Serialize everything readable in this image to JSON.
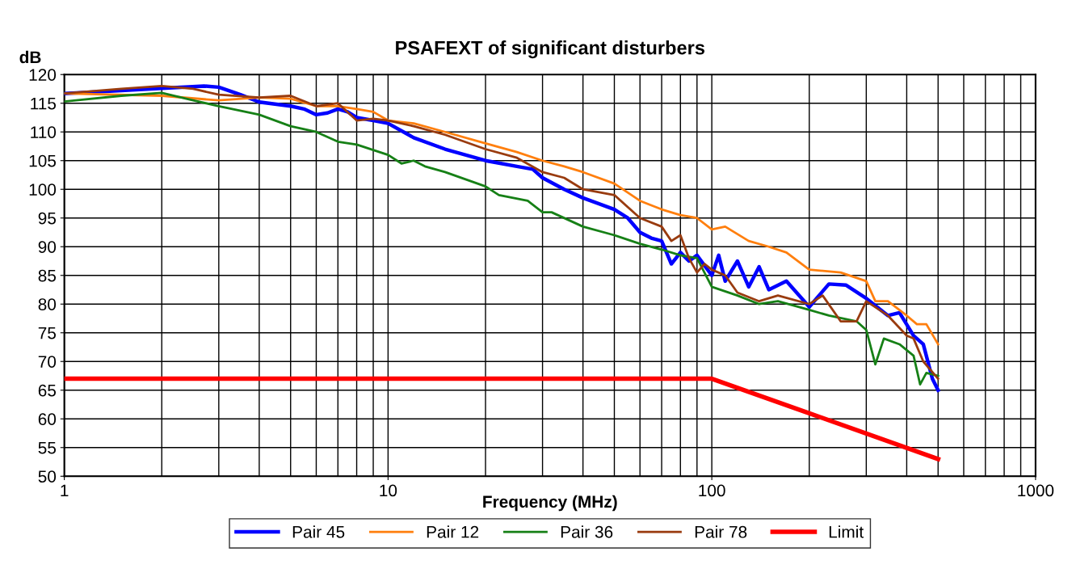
{
  "chart_data": {
    "type": "line",
    "title": "PSAFEXT of significant disturbers",
    "xlabel": "Frequency (MHz)",
    "ylabel": "dB",
    "log": "x",
    "grid": true,
    "legend": "bottom",
    "line_style": "solid",
    "marker": "none",
    "xlim": [
      1,
      1000
    ],
    "xticks": [
      1,
      10,
      100,
      1000
    ],
    "ylim": [
      50,
      120
    ],
    "yticks": [
      50,
      55,
      60,
      65,
      70,
      75,
      80,
      85,
      90,
      95,
      100,
      105,
      110,
      115,
      120
    ],
    "series": [
      {
        "name": "Pair 45",
        "color": "#0000ff",
        "x": [
          1,
          1.5,
          2,
          2.7,
          3,
          3.5,
          4,
          5,
          5.5,
          6,
          6.5,
          7,
          7.5,
          8,
          9,
          10,
          12,
          15,
          20,
          25,
          28,
          30,
          35,
          40,
          50,
          55,
          60,
          65,
          70,
          75,
          80,
          85,
          90,
          100,
          105,
          110,
          120,
          130,
          140,
          150,
          170,
          200,
          230,
          260,
          300,
          350,
          380,
          420,
          450,
          480,
          500
        ],
        "values": [
          116.7,
          117.2,
          117.6,
          118,
          117.8,
          116.5,
          115.2,
          114.5,
          114,
          113,
          113.3,
          114,
          113.5,
          112.5,
          112,
          111.5,
          109,
          107,
          105,
          104,
          103.5,
          102,
          100,
          98.5,
          96.5,
          95,
          92.5,
          91.5,
          91,
          87,
          89,
          87.5,
          88.5,
          85,
          88.5,
          84,
          87.5,
          83,
          86.5,
          82.5,
          84,
          79.5,
          83.5,
          83.3,
          81,
          78,
          78.5,
          74.5,
          73,
          67,
          65
        ]
      },
      {
        "name": "Pair 12",
        "color": "#ff7f0e",
        "x": [
          1,
          2,
          3,
          4,
          5,
          6,
          7,
          8,
          9,
          10,
          12,
          15,
          20,
          25,
          30,
          35,
          40,
          50,
          60,
          70,
          80,
          90,
          100,
          110,
          130,
          150,
          170,
          200,
          250,
          300,
          320,
          350,
          400,
          430,
          460,
          500
        ],
        "values": [
          116.7,
          116.3,
          115.5,
          116,
          115.8,
          114.5,
          114.5,
          114,
          113.5,
          112,
          111.5,
          110,
          108,
          106.5,
          105,
          104,
          103,
          101,
          98,
          96.5,
          95.5,
          95,
          93,
          93.5,
          91,
          90,
          89,
          86,
          85.5,
          84,
          80.5,
          80.5,
          78,
          76.5,
          76.5,
          73
        ]
      },
      {
        "name": "Pair 36",
        "color": "#168016",
        "x": [
          1,
          1.5,
          2,
          2.5,
          3,
          4,
          5,
          6,
          7,
          8,
          10,
          11,
          12,
          13,
          15,
          20,
          22,
          27,
          30,
          32,
          40,
          50,
          60,
          70,
          80,
          90,
          100,
          120,
          140,
          160,
          200,
          230,
          280,
          300,
          320,
          340,
          380,
          420,
          440,
          460,
          500
        ],
        "values": [
          115.3,
          116.3,
          116.8,
          115.5,
          114.5,
          113,
          111,
          110,
          108.3,
          107.8,
          106,
          104.5,
          105,
          104,
          103,
          100.5,
          99,
          98,
          96,
          96,
          93.5,
          92,
          90.5,
          89.5,
          88.5,
          88,
          83,
          81.5,
          80,
          80.5,
          79,
          78,
          77,
          75.5,
          69.5,
          74,
          73,
          71,
          66,
          68,
          67.5
        ]
      },
      {
        "name": "Pair 78",
        "color": "#993b0f",
        "x": [
          1,
          1.5,
          2,
          2.5,
          3,
          4,
          5,
          6,
          7,
          8,
          9,
          10,
          12,
          15,
          20,
          25,
          30,
          35,
          40,
          50,
          60,
          70,
          75,
          80,
          85,
          90,
          95,
          100,
          110,
          120,
          140,
          160,
          200,
          220,
          250,
          280,
          300,
          350,
          400,
          420,
          450,
          500
        ],
        "values": [
          116.7,
          117.5,
          118,
          117.5,
          116.5,
          116,
          116.3,
          114.5,
          115,
          112,
          112.3,
          112,
          111,
          109.5,
          107,
          105.5,
          103,
          102,
          100,
          99,
          95,
          93.5,
          91,
          92,
          88,
          85.5,
          87,
          86,
          85,
          82,
          80.5,
          81.5,
          80,
          81.5,
          77,
          77,
          80.5,
          78,
          74.5,
          74,
          70,
          67
        ]
      },
      {
        "name": "Limit",
        "color": "#ff0000",
        "x": [
          1,
          100,
          500
        ],
        "values": [
          67,
          67,
          53
        ]
      }
    ]
  }
}
